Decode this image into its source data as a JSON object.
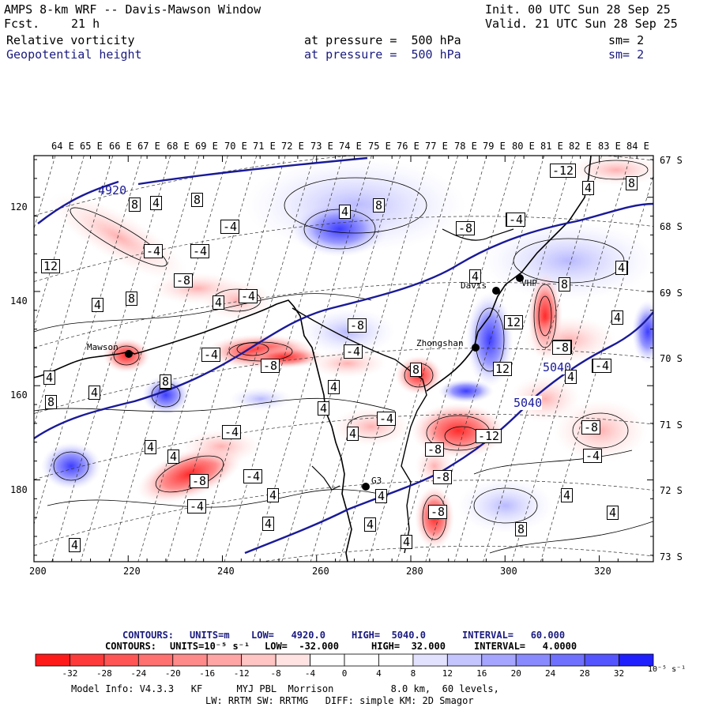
{
  "header": {
    "title": "AMPS 8-km WRF -- Davis-Mawson Window",
    "fcst_label": "Fcst.",
    "fcst_value": "21 h",
    "init": "Init. 00 UTC Sun 28 Sep 25",
    "valid": "Valid. 21 UTC Sun 28 Sep 25",
    "field1": {
      "name": "Relative vorticity",
      "level": "at pressure =  500 hPa",
      "smooth": "sm= 2"
    },
    "field2": {
      "name": "Geopotential height",
      "level": "at pressure =  500 hPa",
      "smooth": "sm= 2"
    }
  },
  "map": {
    "lon_labels": [
      "64 E",
      "65 E",
      "66 E",
      "67 E",
      "68 E",
      "69 E",
      "70 E",
      "71 E",
      "72 E",
      "73 E",
      "74 E",
      "75 E",
      "76 E",
      "77 E",
      "78 E",
      "79 E",
      "80 E",
      "81 E",
      "82 E",
      "83 E",
      "84 E"
    ],
    "lat_labels": [
      "67 S",
      "68 S",
      "69 S",
      "70 S",
      "71 S",
      "72 S",
      "73 S"
    ],
    "y_ticks": [
      "120",
      "140",
      "160",
      "180"
    ],
    "x_ticks": [
      "200",
      "220",
      "240",
      "260",
      "280",
      "300",
      "320"
    ],
    "stations": [
      {
        "name": "Mawson"
      },
      {
        "name": "Davis"
      },
      {
        "name": "Zhongshan"
      },
      {
        "name": "VHP"
      },
      {
        "name": "G3"
      }
    ],
    "height_labels": [
      "4920",
      "5040",
      "5040"
    ],
    "vorticity_labels": [
      "8",
      "4",
      "8",
      "8",
      "-4",
      "-8",
      "-4",
      "4",
      "12",
      "8",
      "4",
      "-12",
      "-4",
      "-8",
      "4",
      "8",
      "4",
      "4",
      "4",
      "-4",
      "-4",
      "-4",
      "-8",
      "-4",
      "-8",
      "4",
      "8",
      "12",
      "-4",
      "-8",
      "8",
      "4",
      "8",
      "4",
      "4",
      "4",
      "-4",
      "4",
      "-4",
      "-8",
      "-12",
      "-8",
      "-8",
      "-4",
      "-4",
      "-8",
      "8",
      "-8",
      "4",
      "4",
      "4",
      "4",
      "4",
      "8",
      "4",
      "4",
      "-4",
      "4",
      "4",
      "4",
      "-8",
      "-4",
      "-4",
      "8",
      "4",
      "12",
      "4"
    ]
  },
  "contours_info": {
    "line1": {
      "label": "CONTOURS:",
      "units": "UNITS=m",
      "low": "LOW=   4920.0",
      "high": "HIGH=  5040.0",
      "interval": "INTERVAL=   60.000"
    },
    "line2": {
      "label": "CONTOURS:",
      "units": "UNITS=10⁻⁵ s⁻¹",
      "low": "LOW=  -32.000",
      "high": "HIGH=  32.000",
      "interval": "INTERVAL=   4.0000"
    }
  },
  "colorbar": {
    "labels": [
      "-32",
      "-28",
      "-24",
      "-20",
      "-16",
      "-12",
      "-8",
      "-4",
      "0",
      "4",
      "8",
      "12",
      "16",
      "20",
      "24",
      "28",
      "32"
    ],
    "units": "10⁻⁵ s⁻¹",
    "colors": [
      "#ff1a1a",
      "#ff3a3a",
      "#ff5555",
      "#ff7070",
      "#ff8a8a",
      "#ffa5a5",
      "#ffc4c4",
      "#ffe2e2",
      "#ffffff",
      "#ffffff",
      "#e2e2ff",
      "#c4c4ff",
      "#a5a5ff",
      "#8a8aff",
      "#7070ff",
      "#5555ff",
      "#2020ff"
    ]
  },
  "footer": {
    "line1": "Model Info: V4.3.3   KF      MYJ PBL  Morrison          8.0 km,  60 levels,",
    "line2": "LW: RRTM SW: RRTMG   DIFF: simple KM: 2D Smagor"
  }
}
